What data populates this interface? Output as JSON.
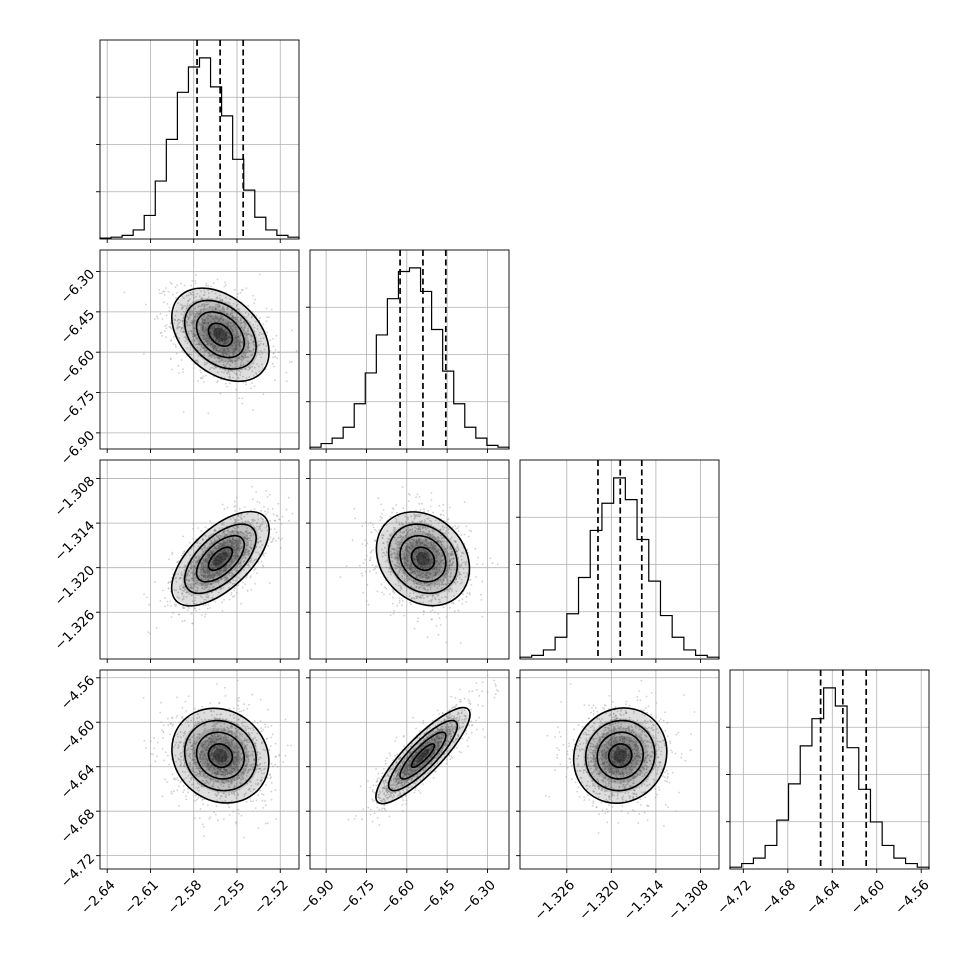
{
  "chart_data": {
    "type": "corner",
    "grid": true,
    "n_params": 4,
    "params": [
      {
        "index": 0,
        "range": [
          -2.645,
          -2.507
        ],
        "median": -2.5617,
        "q16": -2.5777,
        "q84": -2.5457,
        "ticks": [
          -2.64,
          -2.61,
          -2.58,
          -2.55,
          -2.52
        ],
        "tick_labels": [
          "−2.64",
          "−2.61",
          "−2.58",
          "−2.55",
          "−2.52"
        ],
        "hist": [
          0.005,
          0.01,
          0.02,
          0.05,
          0.13,
          0.32,
          0.55,
          0.81,
          0.95,
          1.0,
          0.84,
          0.68,
          0.44,
          0.27,
          0.12,
          0.05,
          0.02,
          0.01
        ]
      },
      {
        "index": 1,
        "range": [
          -6.96,
          -6.22
        ],
        "median": -6.54,
        "q16": -6.625,
        "q84": -6.455,
        "ticks": [
          -6.9,
          -6.75,
          -6.6,
          -6.45,
          -6.3
        ],
        "tick_labels": [
          "−6.90",
          "−6.75",
          "−6.60",
          "−6.45",
          "−6.30"
        ],
        "hist": [
          0.01,
          0.03,
          0.06,
          0.12,
          0.25,
          0.42,
          0.63,
          0.83,
          0.98,
          1.0,
          0.87,
          0.66,
          0.43,
          0.25,
          0.12,
          0.06,
          0.02,
          0.01
        ]
      },
      {
        "index": 2,
        "range": [
          -1.3323,
          -1.3055
        ],
        "median": -1.3188,
        "q16": -1.3218,
        "q84": -1.3159,
        "ticks": [
          -1.326,
          -1.32,
          -1.314,
          -1.308
        ],
        "tick_labels": [
          "−1.326",
          "−1.320",
          "−1.314",
          "−1.308"
        ],
        "hist": [
          0.01,
          0.02,
          0.05,
          0.12,
          0.25,
          0.45,
          0.71,
          0.86,
          1.0,
          0.88,
          0.66,
          0.43,
          0.24,
          0.12,
          0.05,
          0.02,
          0.01
        ]
      },
      {
        "index": 3,
        "range": [
          -4.732,
          -4.553
        ],
        "median": -4.6305,
        "q16": -4.6505,
        "q84": -4.6095,
        "ticks": [
          -4.72,
          -4.68,
          -4.64,
          -4.6,
          -4.56
        ],
        "tick_labels": [
          "−4.72",
          "−4.68",
          "−4.64",
          "−4.60",
          "−4.56"
        ],
        "hist": [
          0.01,
          0.03,
          0.06,
          0.13,
          0.27,
          0.47,
          0.68,
          0.83,
          1.0,
          0.9,
          0.67,
          0.44,
          0.26,
          0.13,
          0.06,
          0.03,
          0.01
        ]
      }
    ],
    "pairs": [
      {
        "x": 0,
        "y": 1,
        "x_mean": -2.5615,
        "y_mean": -6.535,
        "x_sd": 0.0165,
        "y_sd": 0.085,
        "corr": -0.35
      },
      {
        "x": 0,
        "y": 2,
        "x_mean": -2.5615,
        "y_mean": -1.3188,
        "x_sd": 0.0165,
        "y_sd": 0.0031,
        "corr": 0.6
      },
      {
        "x": 1,
        "y": 2,
        "x_mean": -6.54,
        "y_mean": -1.3188,
        "x_sd": 0.085,
        "y_sd": 0.0031,
        "corr": -0.18
      },
      {
        "x": 0,
        "y": 3,
        "x_mean": -2.5615,
        "y_mean": -4.63,
        "x_sd": 0.0165,
        "y_sd": 0.021,
        "corr": -0.1
      },
      {
        "x": 1,
        "y": 3,
        "x_mean": -6.54,
        "y_mean": -4.63,
        "x_sd": 0.085,
        "y_sd": 0.021,
        "corr": 0.85
      },
      {
        "x": 2,
        "y": 3,
        "x_mean": -1.3188,
        "y_mean": -4.63,
        "x_sd": 0.0031,
        "y_sd": 0.021,
        "corr": 0.05
      }
    ],
    "contour_levels_sigma": [
      0.5,
      1.0,
      1.5,
      2.0
    ]
  }
}
